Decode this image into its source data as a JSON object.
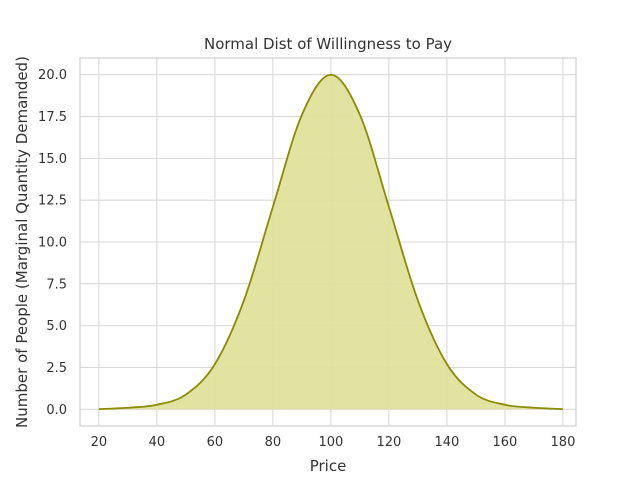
{
  "chart_data": {
    "type": "area",
    "title": "Normal Dist of Willingness to Pay",
    "xlabel": "Price",
    "ylabel": "Number of People (Marginal Quantity Demanded)",
    "xlim": [
      13.5,
      184.5
    ],
    "ylim": [
      -1.0,
      21.0
    ],
    "x_ticks": [
      20,
      40,
      60,
      80,
      100,
      120,
      140,
      160,
      180
    ],
    "x_tick_labels": [
      "20",
      "40",
      "60",
      "80",
      "100",
      "120",
      "140",
      "160",
      "180"
    ],
    "y_ticks": [
      0.0,
      2.5,
      5.0,
      7.5,
      10.0,
      12.5,
      15.0,
      17.5,
      20.0
    ],
    "y_tick_labels": [
      "0.0",
      "2.5",
      "5.0",
      "7.5",
      "10.0",
      "12.5",
      "15.0",
      "17.5",
      "20.0"
    ],
    "grid": true,
    "series": [
      {
        "x": [
          20,
          30,
          40,
          50,
          60,
          70,
          80,
          90,
          100,
          110,
          120,
          130,
          140,
          150,
          160,
          170,
          180
        ],
        "y": [
          0.01,
          0.09,
          0.27,
          0.88,
          2.7,
          6.5,
          12.1,
          17.6,
          20.0,
          17.6,
          12.1,
          6.5,
          2.7,
          0.88,
          0.27,
          0.09,
          0.01
        ],
        "line_color": "#8b8b00",
        "fill_color": "#e0e09c"
      }
    ]
  }
}
